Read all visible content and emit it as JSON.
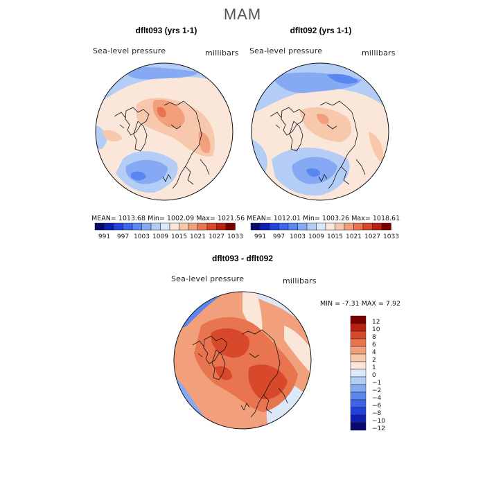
{
  "title": "MAM",
  "panels": [
    {
      "title": "dflt093 (yrs 1-1)",
      "variable": "Sea-level pressure",
      "units": "millibars",
      "stats": "MEAN= 1013.68   Min= 1002.09   Max= 1021.56"
    },
    {
      "title": "dflt092 (yrs 1-1)",
      "variable": "Sea-level pressure",
      "units": "millibars",
      "stats": "MEAN= 1012.01   Min= 1003.26   Max= 1018.61"
    }
  ],
  "diff": {
    "title": "dflt093 - dflt092",
    "variable": "Sea-level pressure",
    "units": "millibars",
    "stats": "MIN =   -7.31  MAX =    7.92"
  },
  "slp_colorbar": {
    "colors": [
      "#08086e",
      "#0d1fb0",
      "#1f42d8",
      "#3b64ea",
      "#5a86f0",
      "#86a9f3",
      "#b3cdf6",
      "#dce9fb",
      "#fbe6da",
      "#f8c8ac",
      "#f2a07c",
      "#e97550",
      "#d8482a",
      "#b82010",
      "#7a0000"
    ],
    "labels": [
      "991",
      "997",
      "1003",
      "1009",
      "1015",
      "1021",
      "1027",
      "1033"
    ]
  },
  "diff_colorbar": {
    "colors": [
      "#08086e",
      "#0d1fb0",
      "#1f42d8",
      "#3b64ea",
      "#5a86f0",
      "#86a9f3",
      "#b3cdf6",
      "#dce9fb",
      "#fbe6da",
      "#f8c8ac",
      "#f2a07c",
      "#e97550",
      "#d8482a",
      "#b82010",
      "#7a0000"
    ],
    "labels": [
      "12",
      "10",
      "8",
      "6",
      "4",
      "2",
      "1",
      "0",
      "−1",
      "−2",
      "−4",
      "−6",
      "−8",
      "−10",
      "−12"
    ]
  }
}
